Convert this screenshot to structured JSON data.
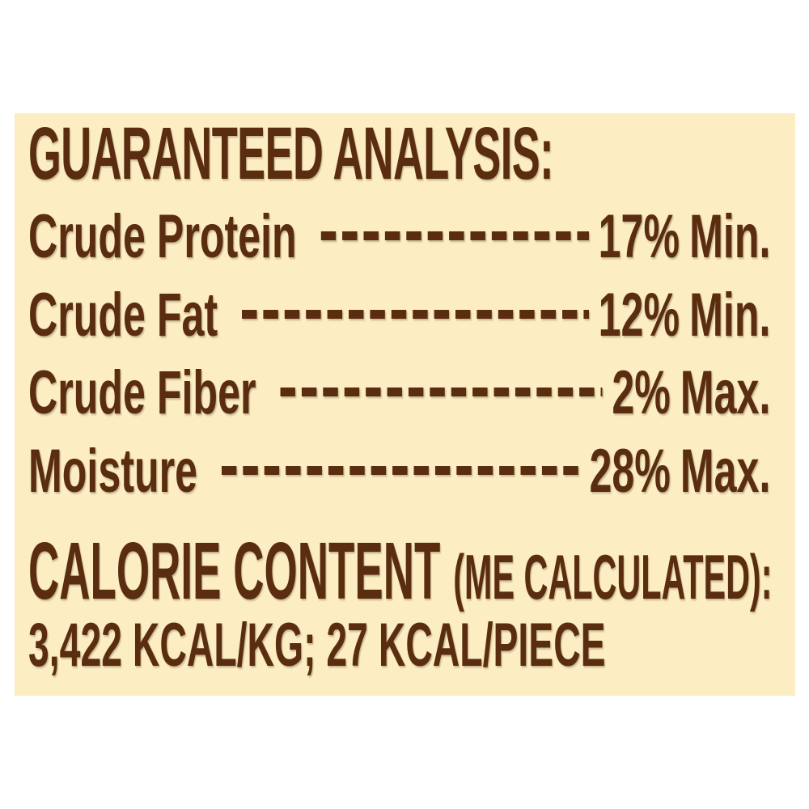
{
  "colors": {
    "panel_background": "#FCEDC2",
    "text": "#5A2D10",
    "page_background": "#FFFFFF"
  },
  "panel": {
    "title": "GUARANTEED ANALYSIS:",
    "rows": [
      {
        "label": "Crude Protein",
        "value": "17%",
        "limit": "Min.",
        "leader_dashes": 13
      },
      {
        "label": "Crude Fat",
        "value": "12%",
        "limit": "Min.",
        "leader_dashes": 18
      },
      {
        "label": "Crude Fiber",
        "value": "2%",
        "limit": "Max.",
        "leader_dashes": 16
      },
      {
        "label": "Moisture",
        "value": "28%",
        "limit": "Max.",
        "leader_dashes": 19
      }
    ],
    "calorie": {
      "heading_main": "CALORIE CONTENT",
      "heading_sub": "(ME CALCULATED):",
      "value_line": "3,422 KCAL/KG; 27 KCAL/PIECE"
    }
  }
}
